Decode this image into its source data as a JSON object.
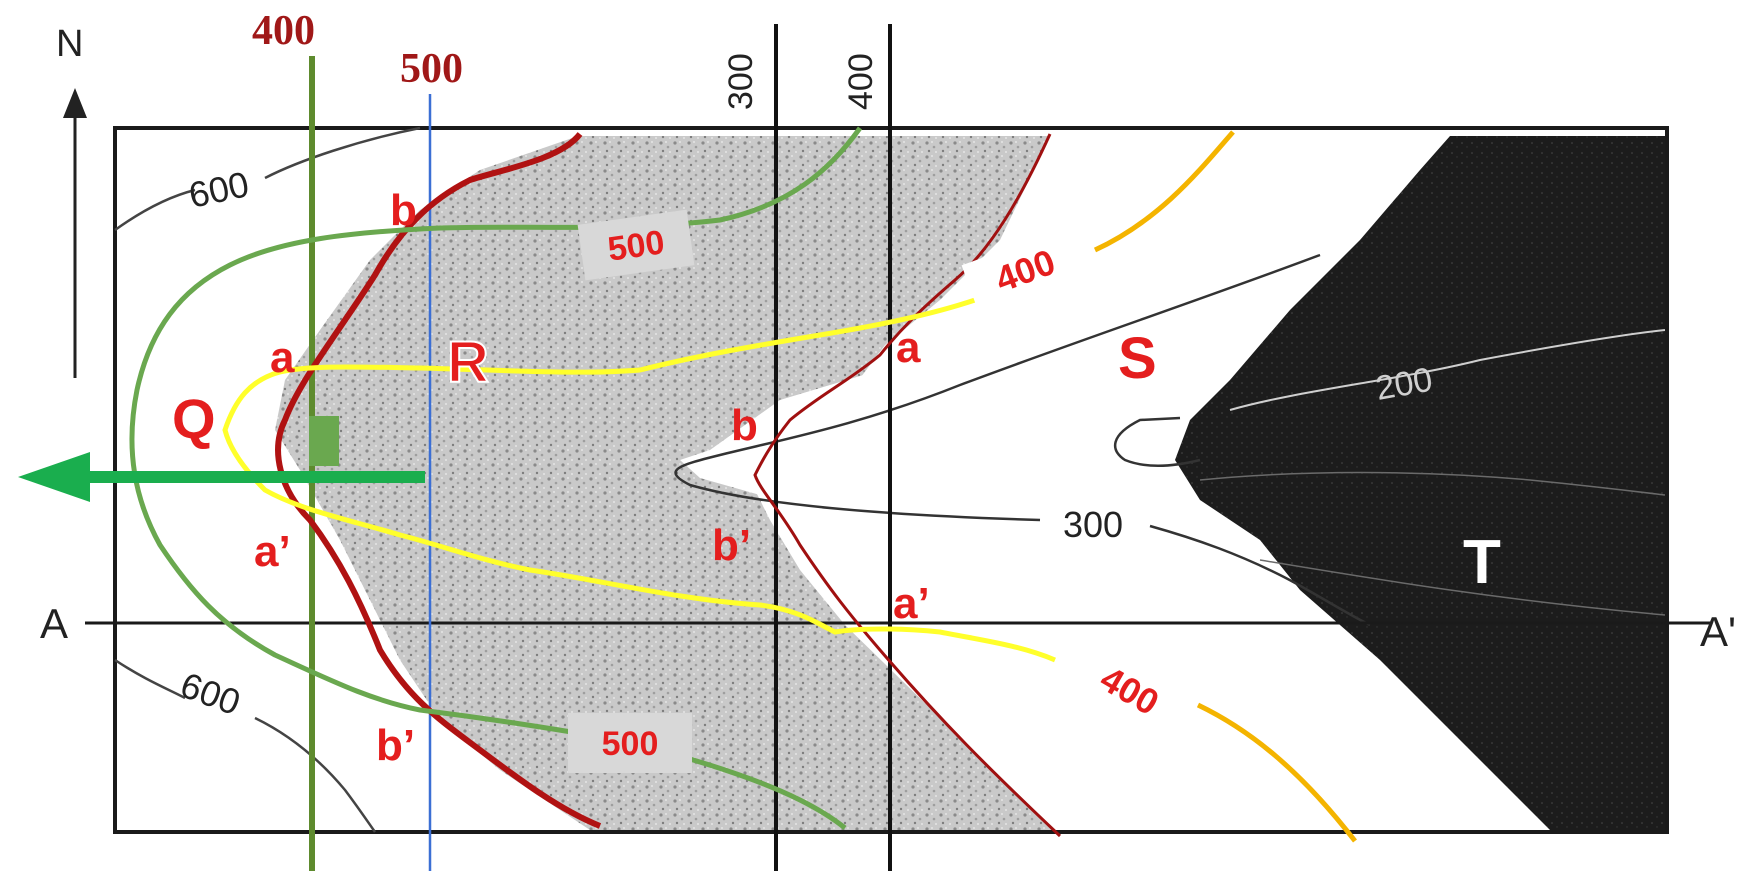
{
  "north_label": "N",
  "section": {
    "start": "A",
    "end": "A'"
  },
  "unit_labels": {
    "Q": "Q",
    "R": "R",
    "S": "S",
    "T": "T"
  },
  "guide_lines": {
    "green": "400",
    "blue": "500",
    "top_left": "300",
    "top_right": "400"
  },
  "contours": {
    "c600_top": "600",
    "c600_bottom": "600",
    "c300": "300",
    "c200": "200"
  },
  "green_contour_tags": {
    "top": "500",
    "bottom": "500"
  },
  "yellow_contour_tags": {
    "top": "400",
    "bottom": "400"
  },
  "points": {
    "b_left": "b",
    "a_left": "a",
    "a_prime_left": "a’",
    "b_prime_left": "b’",
    "a_right": "a",
    "b_mid": "b",
    "b_prime_mid": "b’",
    "a_prime_right": "a’"
  },
  "colors": {
    "red_boundary": "#b01212",
    "green_contour": "#6aa84f",
    "yellow_contour": "#ffff2b",
    "orange_contour": "#f4b400",
    "blue_line": "#3b6fd4",
    "arrow": "#1aae4e"
  }
}
